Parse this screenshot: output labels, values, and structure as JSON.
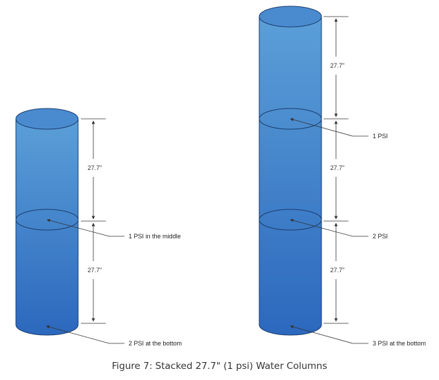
{
  "colors": {
    "water_top": "#5b9fd8",
    "water_bottom": "#2c68bd",
    "outline": "#1b3d6e",
    "line": "#333333"
  },
  "left_column": {
    "dim_upper": "27.7\"",
    "dim_lower": "27.7\"",
    "callout_middle": "1 PSI in the middle",
    "callout_bottom": "2 PSI at the bottom"
  },
  "right_column": {
    "dim_top": "27.7\"",
    "dim_middle": "27.7\"",
    "dim_bottom": "27.7\"",
    "callout_1": "1 PSI",
    "callout_2": "2 PSI",
    "callout_3": "3 PSI at the bottom"
  },
  "caption": "Figure 7: Stacked 27.7\" (1 psi) Water Columns"
}
